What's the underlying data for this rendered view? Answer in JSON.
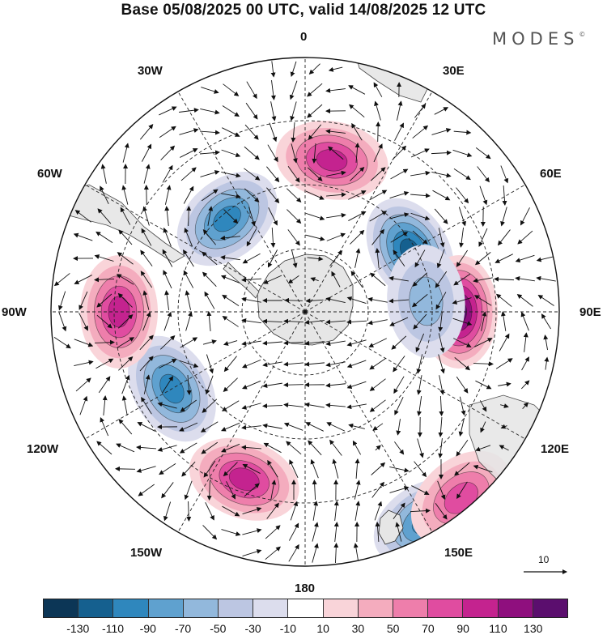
{
  "title": "Base 05/08/2025 00 UTC, valid 14/08/2025 12 UTC",
  "brand": "MODES",
  "brand_mark": "©",
  "longitude_labels": {
    "lon_0": "0",
    "lon_30e": "30E",
    "lon_60e": "60E",
    "lon_90e": "90E",
    "lon_120e": "120E",
    "lon_150e": "150E",
    "lon_180": "180",
    "lon_150w": "150W",
    "lon_120w": "120W",
    "lon_90w": "90W",
    "lon_60w": "60W",
    "lon_30w": "30W"
  },
  "vector_scale_label": "10",
  "colorbar": {
    "colors": [
      "#0c3656",
      "#15608f",
      "#2f87bd",
      "#5fa1cf",
      "#92b8dc",
      "#bcc6e2",
      "#dcdded",
      "#ffffff",
      "#f9d4d9",
      "#f4acbe",
      "#ee7eab",
      "#e04ca0",
      "#c4238f",
      "#8f0f7e",
      "#5b0e6e"
    ],
    "ticks": [
      "-130",
      "-110",
      "-90",
      "-70",
      "-50",
      "-30",
      "-10",
      "10",
      "30",
      "50",
      "70",
      "90",
      "110",
      "130"
    ]
  },
  "anomaly_centers": [
    {
      "lon": 60,
      "level": 110,
      "sign": "negative"
    },
    {
      "lon": 90,
      "level": 120,
      "sign": "positive"
    },
    {
      "lon": 150,
      "level": 90,
      "sign": "negative"
    },
    {
      "lon": -160,
      "level": 90,
      "sign": "positive"
    },
    {
      "lon": -120,
      "level": 90,
      "sign": "negative"
    },
    {
      "lon": -90,
      "level": 90,
      "sign": "positive"
    },
    {
      "lon": -40,
      "level": 90,
      "sign": "negative"
    },
    {
      "lon": 10,
      "level": 90,
      "sign": "positive"
    },
    {
      "lon": 140,
      "level": 70,
      "sign": "positive"
    },
    {
      "lon": 85,
      "level": 50,
      "sign": "negative"
    }
  ]
}
